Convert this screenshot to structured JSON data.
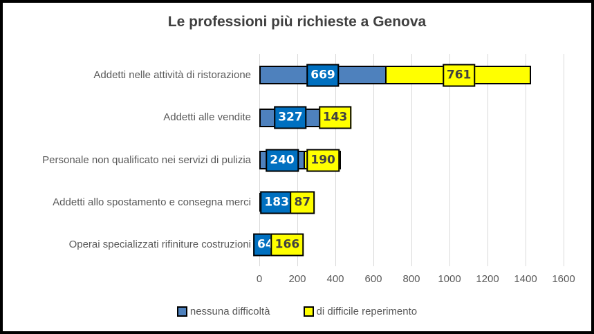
{
  "chart_data": {
    "type": "bar",
    "orientation": "horizontal-stacked",
    "title": "Le professioni più richieste a Genova",
    "categories": [
      "Addetti nelle attività di ristorazione",
      "Addetti alle vendite",
      "Personale non qualificato nei servizi di pulizia",
      "Addetti allo spostamento e consegna merci",
      "Operai specializzati rifiniture costruzioni"
    ],
    "series": [
      {
        "name": "nessuna difficoltà",
        "color": "#4E81BD",
        "label_bg": "#0070C0",
        "label_color": "#FFFFFF",
        "values": [
          669,
          327,
          240,
          183,
          64
        ]
      },
      {
        "name": "di difficile reperimento",
        "color": "#FFFF00",
        "label_bg": "#FFFF00",
        "label_color": "#404040",
        "values": [
          761,
          143,
          190,
          87,
          166
        ]
      }
    ],
    "xlim": [
      0,
      1600
    ],
    "xticks": [
      0,
      200,
      400,
      600,
      800,
      1000,
      1200,
      1400,
      1600
    ],
    "grid": "vertical",
    "legend_position": "bottom"
  },
  "colors": {
    "gridline": "#D9D9D9",
    "axis_text": "#595959",
    "title_text": "#404040",
    "frame_border": "#000000",
    "bar_border": "#000000",
    "background": "#FFFFFF"
  }
}
